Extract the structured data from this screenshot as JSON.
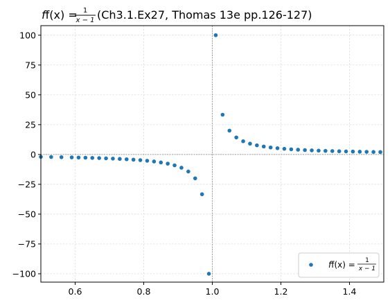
{
  "chart_data": {
    "type": "scatter",
    "title": {
      "prefix": "f(x) = ",
      "frac_num": "1",
      "frac_den": "x − 1",
      "suffix": " (Ch3.1.Ex27, Thomas 13e pp.126-127)"
    },
    "xlabel": "",
    "ylabel": "",
    "xlim": [
      0.5,
      1.5
    ],
    "ylim": [
      -107,
      108
    ],
    "xticks": [
      0.6,
      0.8,
      1.0,
      1.2,
      1.4
    ],
    "xtick_labels": [
      "0.6",
      "0.8",
      "1.0",
      "1.2",
      "1.4"
    ],
    "yticks": [
      100,
      75,
      50,
      25,
      0,
      -25,
      -50,
      -75,
      -100
    ],
    "ytick_labels": [
      "100",
      "75",
      "50",
      "25",
      "0",
      "−25",
      "−50",
      "−75",
      "−100"
    ],
    "grid": true,
    "legend_position": "lower-right",
    "reference_lines": {
      "x": 1.0,
      "y": 0
    },
    "colors": {
      "series": "#1f77b4",
      "grid": "#d9d9d9",
      "reference": "#7f7f7f",
      "axes": "#000000"
    },
    "series": [
      {
        "name_parts": {
          "prefix": "f(x) = ",
          "frac_num": "1",
          "frac_den": "x − 1"
        },
        "x": [
          0.5,
          0.53,
          0.56,
          0.59,
          0.61,
          0.63,
          0.65,
          0.67,
          0.69,
          0.71,
          0.73,
          0.75,
          0.77,
          0.79,
          0.81,
          0.83,
          0.85,
          0.87,
          0.89,
          0.91,
          0.93,
          0.95,
          0.97,
          0.99,
          1.01,
          1.03,
          1.05,
          1.07,
          1.09,
          1.11,
          1.13,
          1.15,
          1.17,
          1.19,
          1.21,
          1.23,
          1.25,
          1.27,
          1.29,
          1.31,
          1.33,
          1.35,
          1.37,
          1.39,
          1.41,
          1.43,
          1.45,
          1.47,
          1.49
        ],
        "y": [
          -2.0,
          -2.13,
          -2.27,
          -2.44,
          -2.56,
          -2.7,
          -2.86,
          -3.03,
          -3.23,
          -3.45,
          -3.7,
          -4.0,
          -4.35,
          -4.76,
          -5.26,
          -5.88,
          -6.67,
          -7.69,
          -9.09,
          -11.11,
          -14.29,
          -20.0,
          -33.33,
          -100.0,
          100.0,
          33.33,
          20.0,
          14.29,
          11.11,
          9.09,
          7.69,
          6.67,
          5.88,
          5.26,
          4.76,
          4.35,
          4.0,
          3.7,
          3.45,
          3.23,
          3.03,
          2.86,
          2.7,
          2.56,
          2.44,
          2.33,
          2.22,
          2.13,
          2.04
        ]
      }
    ]
  }
}
